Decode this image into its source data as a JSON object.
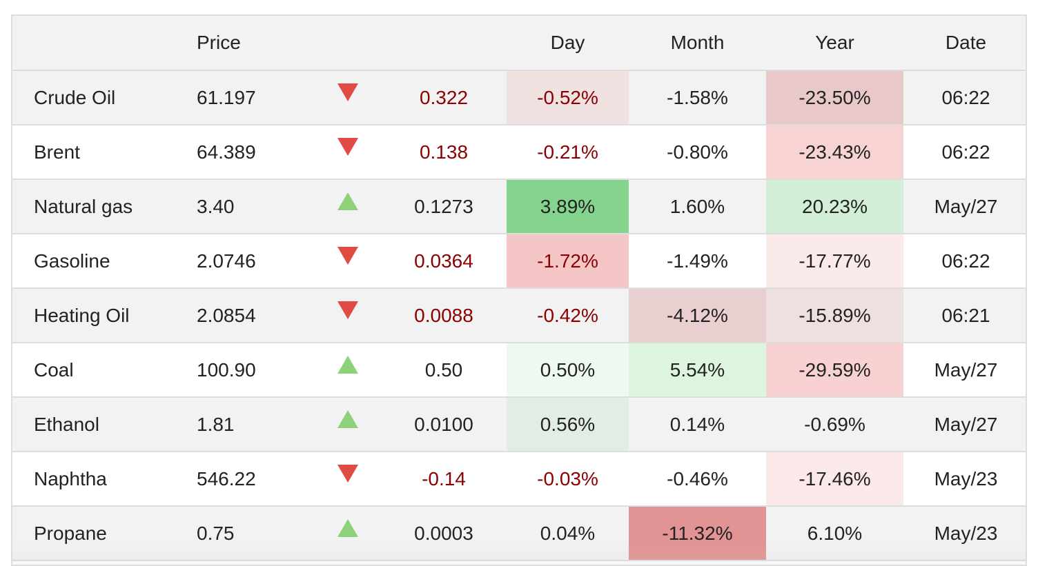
{
  "header": {
    "col_name": "",
    "col_price": "Price",
    "col_arrow": "",
    "col_change": "",
    "col_day": "Day",
    "col_month": "Month",
    "col_year": "Year",
    "col_date": "Date"
  },
  "rows": [
    {
      "name": "Crude Oil",
      "price": "61.197",
      "direction": "down",
      "change": "0.322",
      "day": "-0.52%",
      "month": "-1.58%",
      "year": "-23.50%",
      "date": "06:22",
      "day_color": "#f1e2e2",
      "month_color": "",
      "year_color": "#e8c8c8"
    },
    {
      "name": "Brent",
      "price": "64.389",
      "direction": "down",
      "change": "0.138",
      "day": "-0.21%",
      "month": "-0.80%",
      "year": "-23.43%",
      "date": "06:22",
      "day_color": "",
      "month_color": "",
      "year_color": "#f7d3d3"
    },
    {
      "name": "Natural gas",
      "price": "3.40",
      "direction": "up",
      "change": "0.1273",
      "day": "3.89%",
      "month": "1.60%",
      "year": "20.23%",
      "date": "May/27",
      "day_color": "#85d48d",
      "month_color": "",
      "year_color": "#d2eed6"
    },
    {
      "name": "Gasoline",
      "price": "2.0746",
      "direction": "down",
      "change": "0.0364",
      "day": "-1.72%",
      "month": "-1.49%",
      "year": "-17.77%",
      "date": "06:22",
      "day_color": "#f4c6c6",
      "month_color": "",
      "year_color": "#fbeaea"
    },
    {
      "name": "Heating Oil",
      "price": "2.0854",
      "direction": "down",
      "change": "0.0088",
      "day": "-0.42%",
      "month": "-4.12%",
      "year": "-15.89%",
      "date": "06:21",
      "day_color": "",
      "month_color": "#e9cfcf",
      "year_color": "#efe0e0"
    },
    {
      "name": "Coal",
      "price": "100.90",
      "direction": "up",
      "change": "0.50",
      "day": "0.50%",
      "month": "5.54%",
      "year": "-29.59%",
      "date": "May/27",
      "day_color": "#eefaef",
      "month_color": "#ddf4df",
      "year_color": "#f8d2d2"
    },
    {
      "name": "Ethanol",
      "price": "1.81",
      "direction": "up",
      "change": "0.0100",
      "day": "0.56%",
      "month": "0.14%",
      "year": "-0.69%",
      "date": "May/27",
      "day_color": "#e2eee3",
      "month_color": "",
      "year_color": ""
    },
    {
      "name": "Naphtha",
      "price": "546.22",
      "direction": "down",
      "change": "-0.14",
      "day": "-0.03%",
      "month": "-0.46%",
      "year": "-17.46%",
      "date": "May/23",
      "day_color": "",
      "month_color": "",
      "year_color": "#fbe8e8"
    },
    {
      "name": "Propane",
      "price": "0.75",
      "direction": "up",
      "change": "0.0003",
      "day": "0.04%",
      "month": "-11.32%",
      "year": "6.10%",
      "date": "May/23",
      "day_color": "",
      "month_color": "#e29393",
      "year_color": ""
    }
  ],
  "colors": {
    "up_arrow": "#8fd07a",
    "down_arrow": "#e04b44",
    "down_text": "#8b0000",
    "row_alt": "#f2f2f2",
    "border": "#dddddd"
  }
}
